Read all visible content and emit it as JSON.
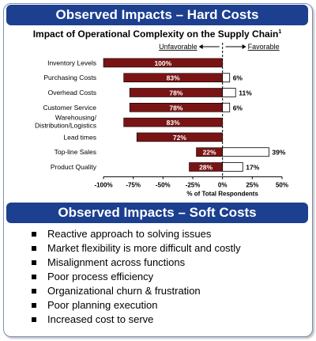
{
  "hard_costs": {
    "title": "Observed Impacts – Hard Costs",
    "chart_title": "Impact of Operational Complexity on the Supply Chain",
    "chart_title_sup": "1"
  },
  "soft_costs": {
    "title": "Observed Impacts – Soft Costs",
    "items": [
      "Reactive approach to solving issues",
      "Market flexibility is more difficult and costly",
      "Misalignment across functions",
      "Poor process efficiency",
      "Organizational churn & frustration",
      "Poor planning execution",
      "Increased cost to serve"
    ]
  },
  "colors": {
    "banner": "#1c3f8f",
    "unfavorable_bar": "#7a1414",
    "favorable_bar": "#ffffff"
  },
  "chart_data": {
    "type": "bar",
    "orientation": "horizontal",
    "title": "Impact of Operational Complexity on the Supply Chain",
    "xlabel": "% of Total Respondents",
    "direction_labels": {
      "left": "Unfavorable",
      "right": "Favorable"
    },
    "xlim": [
      -100,
      50
    ],
    "xticks": [
      -100,
      -75,
      -50,
      -25,
      0,
      25,
      50
    ],
    "xtick_labels": [
      "-100%",
      "-75%",
      "-50%",
      "-25%",
      "0%",
      "25%",
      "50%"
    ],
    "categories": [
      "Inventory Levels",
      "Purchasing Costs",
      "Overhead Costs",
      "Customer Service",
      "Warehousing/ Distribution/Logistics",
      "Lead times",
      "Top-line Sales",
      "Product Quality"
    ],
    "series": [
      {
        "values": [
          -100,
          -83,
          -78,
          -78,
          -83,
          -72,
          -22,
          -28
        ],
        "labels": [
          "100%",
          "83%",
          "78%",
          "78%",
          "83%",
          "72%",
          "22%",
          "28%"
        ]
      },
      {
        "values": [
          0,
          6,
          11,
          6,
          0,
          0,
          39,
          17
        ],
        "labels": [
          "",
          "6%",
          "11%",
          "6%",
          "",
          "",
          "39%",
          "17%"
        ]
      }
    ]
  }
}
